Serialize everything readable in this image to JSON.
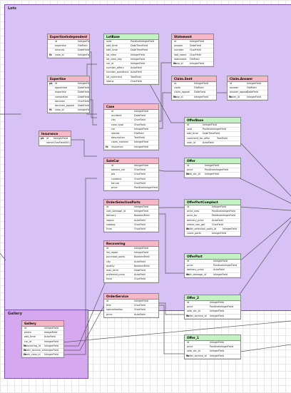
{
  "groups": {
    "lots": {
      "label": "Lots",
      "color": "#d8c2f5"
    },
    "gallery": {
      "label": "Gallery",
      "color": "#d6a8f0"
    }
  },
  "colors": {
    "header_pink": "#f5b8c6",
    "header_green": "#c4f2c4",
    "line": "#555555"
  },
  "entities": {
    "expertise_independent": {
      "title": "ExpertiseIndependent",
      "rows": [
        {
          "key": "",
          "name": "id",
          "type": "IntegerField"
        },
        {
          "key": "",
          "name": "expertise",
          "type": "FileField"
        },
        {
          "key": "",
          "name": "amount",
          "type": "DateField"
        },
        {
          "key": "fk",
          "name": "case_id",
          "type": "IntegerField"
        }
      ]
    },
    "expertise": {
      "title": "Expertise",
      "rows": [
        {
          "key": "pk",
          "name": "id",
          "type": "IntegerField"
        },
        {
          "key": "",
          "name": "appointed",
          "type": "DateField"
        },
        {
          "key": "",
          "name": "expertise",
          "type": "DateField"
        },
        {
          "key": "",
          "name": "completed",
          "type": "DateField"
        },
        {
          "key": "",
          "name": "decision",
          "type": "CharField"
        },
        {
          "key": "",
          "name": "decision_appeal",
          "type": "DateField"
        },
        {
          "key": "fk",
          "name": "case_id",
          "type": "IntegerField"
        }
      ]
    },
    "insurance": {
      "title": "Insurance",
      "rows": [
        {
          "key": "pk",
          "name": "id",
          "type": "IntegerField"
        },
        {
          "key": "",
          "name": "name",
          "type": "CharField(50)"
        }
      ]
    },
    "lot_base": {
      "title": "LotBase",
      "rows": [
        {
          "key": "",
          "name": "sold",
          "type": "PositiveIntegerField"
        },
        {
          "key": "",
          "name": "add_time",
          "type": "DateTimeField"
        },
        {
          "key": "",
          "name": "edit_time",
          "type": "DateTimeField"
        },
        {
          "key": "",
          "name": "lot_view",
          "type": "IntegerField"
        },
        {
          "key": "",
          "name": "lot_view_day",
          "type": "IntegerField"
        },
        {
          "key": "",
          "name": "car_id",
          "type": "IntegerField"
        },
        {
          "key": "",
          "name": "number_offers",
          "type": "AutoField"
        },
        {
          "key": "",
          "name": "number_questions",
          "type": "AutoField"
        },
        {
          "key": "",
          "name": "lot_comment",
          "type": "TextField"
        },
        {
          "key": "",
          "name": "status",
          "type": "CharField"
        }
      ]
    },
    "case": {
      "title": "Case",
      "rows": [
        {
          "key": "",
          "name": "id",
          "type": "IntegerField"
        },
        {
          "key": "",
          "name": "accident",
          "type": "DateField"
        },
        {
          "key": "",
          "name": "city",
          "type": "CharField"
        },
        {
          "key": "",
          "name": "case_type",
          "type": "CharField"
        },
        {
          "key": "",
          "name": "car",
          "type": "IntegerField"
        },
        {
          "key": "",
          "name": "stories",
          "type": "FileField"
        },
        {
          "key": "",
          "name": "description",
          "type": "TextField"
        },
        {
          "key": "",
          "name": "claim_number",
          "type": "IntegerField"
        },
        {
          "key": "fk",
          "name": "insurance",
          "type": "IntegerField"
        }
      ]
    },
    "sale_car": {
      "title": "SaleCar",
      "rows": [
        {
          "key": "",
          "name": "id",
          "type": "IntegerField"
        },
        {
          "key": "",
          "name": "owners_car",
          "type": "CharField"
        },
        {
          "key": "",
          "name": "pts",
          "type": "CharField"
        },
        {
          "key": "",
          "name": "customs",
          "type": "CharField"
        },
        {
          "key": "",
          "name": "tenure",
          "type": "CharField"
        },
        {
          "key": "",
          "name": "price",
          "type": "PositiveIntegerField"
        }
      ]
    },
    "order_selection_parts": {
      "title": "OrderSelectionParts",
      "rows": [
        {
          "key": "",
          "name": "id",
          "type": "IntegerField"
        },
        {
          "key": "",
          "name": "cart_damage_id",
          "type": "IntegerField"
        },
        {
          "key": "",
          "name": "delivery",
          "type": "BooleanField"
        },
        {
          "key": "",
          "name": "region",
          "type": "AutoField"
        },
        {
          "key": "",
          "name": "catalog",
          "type": "CharField"
        },
        {
          "key": "",
          "name": "from",
          "type": "CharField"
        }
      ]
    },
    "recovering": {
      "title": "Recovering",
      "rows": [
        {
          "key": "",
          "name": "id",
          "type": "IntegerField"
        },
        {
          "key": "",
          "name": "list_repair",
          "type": "IntegerField"
        },
        {
          "key": "",
          "name": "purchase_parts",
          "type": "BooleanField"
        },
        {
          "key": "",
          "name": "city",
          "type": "AutoField"
        },
        {
          "key": "",
          "name": "quality",
          "type": "BooleanField"
        },
        {
          "key": "",
          "name": "max_term",
          "type": "DateField"
        },
        {
          "key": "",
          "name": "preferred_price",
          "type": "AutoField"
        },
        {
          "key": "",
          "name": "from",
          "type": "CharField"
        }
      ]
    },
    "order_service": {
      "title": "OrderService",
      "rows": [
        {
          "key": "",
          "name": "id",
          "type": "IntegerField"
        },
        {
          "key": "",
          "name": "title",
          "type": "CharField"
        },
        {
          "key": "",
          "name": "specialization",
          "type": "CharField"
        },
        {
          "key": "",
          "name": "price",
          "type": "AutoField"
        }
      ]
    },
    "statement": {
      "title": "Statement",
      "rows": [
        {
          "key": "",
          "name": "id",
          "type": "IntegerField"
        },
        {
          "key": "",
          "name": "answer",
          "type": "DateField"
        },
        {
          "key": "",
          "name": "number",
          "type": "CharField"
        },
        {
          "key": "",
          "name": "last_name",
          "type": "CharField"
        },
        {
          "key": "",
          "name": "statement",
          "type": "FileField"
        },
        {
          "key": "fk",
          "name": "case_id",
          "type": "IntegerField"
        }
      ]
    },
    "claim_sent": {
      "title": "Claim.Sent",
      "rows": [
        {
          "key": "",
          "name": "id",
          "type": "IntegerField"
        },
        {
          "key": "",
          "name": "claim",
          "type": "FileField"
        },
        {
          "key": "",
          "name": "claim_appeal",
          "type": "DateField"
        },
        {
          "key": "fk",
          "name": "case_id",
          "type": "IntegerField"
        }
      ]
    },
    "claim_answer": {
      "title": "Claim.Answer",
      "rows": [
        {
          "key": "",
          "name": "id",
          "type": "IntegerField"
        },
        {
          "key": "",
          "name": "answer",
          "type": "FileField"
        },
        {
          "key": "",
          "name": "answer_appeal",
          "type": "DateField"
        },
        {
          "key": "fk",
          "name": "claim_id",
          "type": "IntegerField"
        }
      ]
    },
    "offer_base": {
      "title": "OfferBase",
      "rows": [
        {
          "key": "",
          "name": "id",
          "type": "IntegerField"
        },
        {
          "key": "",
          "name": "sold",
          "type": "PositiveIntegerField"
        },
        {
          "key": "",
          "name": "add_time",
          "type": "DateTimeField"
        },
        {
          "key": "",
          "name": "comment_for_offer",
          "type": "TextField"
        },
        {
          "key": "",
          "name": "user_id",
          "type": "AutoField"
        }
      ]
    },
    "offer": {
      "title": "Offer",
      "rows": [
        {
          "key": "",
          "name": "id",
          "type": "IntegerField"
        },
        {
          "key": "",
          "name": "price",
          "type": "PositiveIntegerField"
        },
        {
          "key": "fk",
          "name": "sale_car_id",
          "type": "IntegerField"
        }
      ]
    },
    "offer_part_complect": {
      "title": "OfferPartComplect",
      "rows": [
        {
          "key": "",
          "name": "id",
          "type": "IntegerField"
        },
        {
          "key": "",
          "name": "price_new",
          "type": "PositiveIntegerField"
        },
        {
          "key": "",
          "name": "price_bu",
          "type": "PositiveIntegerField"
        },
        {
          "key": "",
          "name": "delivery_price",
          "type": "AutoField"
        },
        {
          "key": "",
          "name": "where_can_get",
          "type": "CharField"
        },
        {
          "key": "fk",
          "name": "order_selection_parts_id",
          "type": "IntegerField"
        },
        {
          "key": "",
          "name": "count_parts",
          "type": "IntegerField"
        }
      ]
    },
    "offer_part": {
      "title": "OfferPart",
      "rows": [
        {
          "key": "",
          "name": "id",
          "type": "IntegerField"
        },
        {
          "key": "",
          "name": "price",
          "type": "PositiveIntegerField"
        },
        {
          "key": "",
          "name": "delivery_price",
          "type": "AutoField"
        },
        {
          "key": "fk",
          "name": "cart_damage_id",
          "type": "IntegerField"
        }
      ]
    },
    "offer_2": {
      "title": "Offer_2",
      "rows": [
        {
          "key": "",
          "name": "id",
          "type": "IntegerField"
        },
        {
          "key": "",
          "name": "price",
          "type": "PositiveIntegerField"
        },
        {
          "key": "",
          "name": "sale_car_id",
          "type": "IntegerField"
        },
        {
          "key": "fk",
          "name": "order_service_id",
          "type": "IntegerField"
        }
      ]
    },
    "offer_1": {
      "title": "Offer_1",
      "rows": [
        {
          "key": "",
          "name": "id",
          "type": "IntegerField"
        },
        {
          "key": "",
          "name": "price",
          "type": "PositiveIntegerField"
        },
        {
          "key": "",
          "name": "sale_car_id",
          "type": "IntegerField"
        },
        {
          "key": "fk",
          "name": "order_service_id",
          "type": "IntegerField"
        }
      ]
    },
    "gallery": {
      "title": "Gallery",
      "rows": [
        {
          "key": "",
          "name": "id",
          "type": "IntegerField"
        },
        {
          "key": "",
          "name": "photo",
          "type": "ImageField"
        },
        {
          "key": "",
          "name": "add_time",
          "type": "AutoField"
        },
        {
          "key": "",
          "name": "car_id",
          "type": "IntegerField"
        },
        {
          "key": "fk",
          "name": "recovering_id",
          "type": "IntegerField"
        },
        {
          "key": "fk",
          "name": "order_service_id",
          "type": "IntegerField"
        },
        {
          "key": "fk",
          "name": "work_case_id",
          "type": "IntegerField"
        }
      ]
    }
  }
}
